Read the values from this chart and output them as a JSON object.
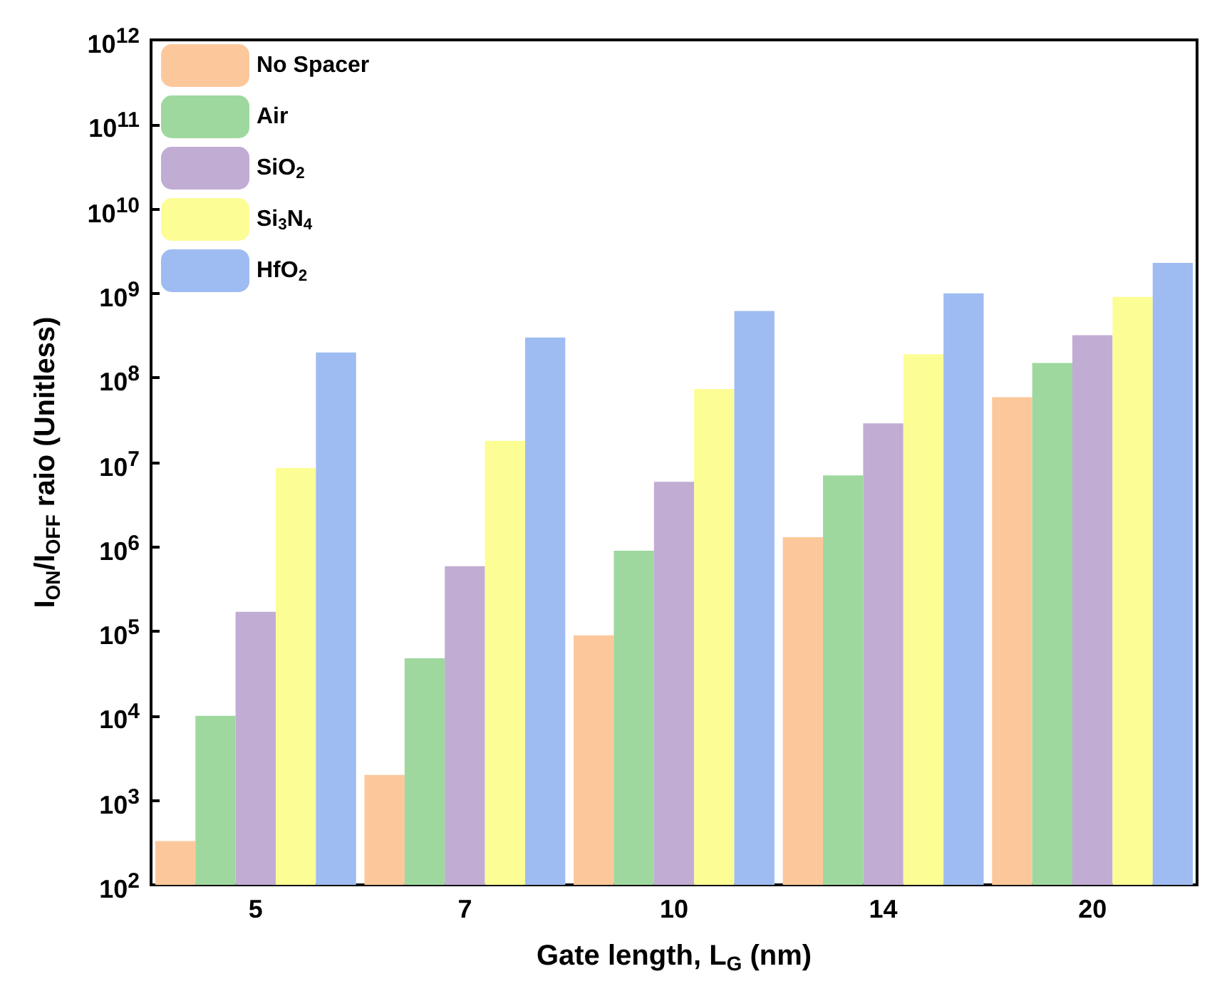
{
  "chart_data": {
    "type": "bar",
    "xlabel": "Gate length, L$_{G}$ (nm)",
    "ylabel": "I$_{ON}$/I$_{OFF}$ raio (Unitless)",
    "categories": [
      "5",
      "7",
      "10",
      "14",
      "20"
    ],
    "series": [
      {
        "name": "No Spacer",
        "color": "#fcc89b",
        "values": [
          330,
          2000,
          90000,
          1300000,
          59000000
        ]
      },
      {
        "name": "Air",
        "color": "#9ed89e",
        "values": [
          10000,
          48000,
          900000,
          7000000,
          150000000
        ]
      },
      {
        "name": "SiO$_{2}$",
        "color": "#c1acd4",
        "values": [
          170000,
          590000,
          5900000,
          29000000,
          320000000
        ]
      },
      {
        "name": "Si$_{3}$N$_{4}$",
        "color": "#fdfd96",
        "values": [
          8600000,
          18000000,
          74000000,
          190000000,
          910000000
        ]
      },
      {
        "name": "HfO$_{2}$",
        "color": "#9ebcf1",
        "values": [
          200000000,
          300000000,
          620000000,
          1000000000,
          2300000000
        ]
      }
    ],
    "log": true,
    "ylim": [
      100,
      1000000000000
    ],
    "yticks": [
      {
        "value": 100,
        "label": "10$^{2}$"
      },
      {
        "value": 1000,
        "label": "10$^{3}$"
      },
      {
        "value": 10000,
        "label": "10$^{4}$"
      },
      {
        "value": 100000,
        "label": "10$^{5}$"
      },
      {
        "value": 1000000,
        "label": "10$^{6}$"
      },
      {
        "value": 10000000,
        "label": "10$^{7}$"
      },
      {
        "value": 100000000,
        "label": "10$^{8}$"
      },
      {
        "value": 1000000000,
        "label": "10$^{9}$"
      },
      {
        "value": 10000000000,
        "label": "10$^{10}$"
      },
      {
        "value": 100000000000,
        "label": "10$^{11}$"
      },
      {
        "value": 1000000000000,
        "label": "10$^{12}$"
      }
    ],
    "grid": false,
    "legend": "top left"
  }
}
